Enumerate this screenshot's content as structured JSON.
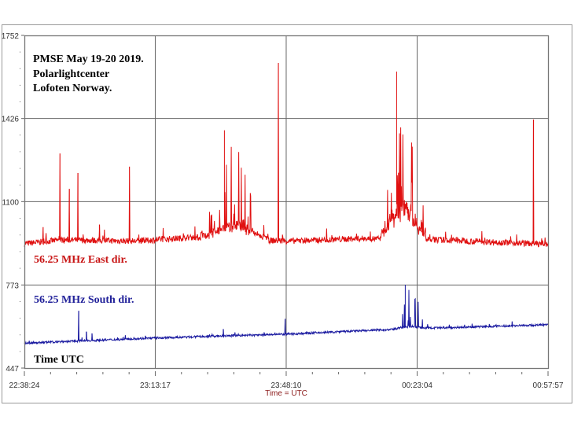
{
  "chart_data": {
    "type": "line",
    "title": "PMSE May 19-20 2019.",
    "subtitle_lines": [
      "Polarlightcenter",
      "Lofoten Norway."
    ],
    "xlabel": "Time = UTC",
    "corner_label": "Time UTC",
    "x_unit": "minutes since 22:38:24",
    "xlim": [
      0,
      139.55
    ],
    "ylim": [
      447,
      1752
    ],
    "x_ticks": [
      {
        "t": 0,
        "label": "22:38:24"
      },
      {
        "t": 34.88,
        "label": "23:13:17"
      },
      {
        "t": 69.77,
        "label": "23:48:10"
      },
      {
        "t": 104.67,
        "label": "00:23:04"
      },
      {
        "t": 139.55,
        "label": "00:57:57"
      }
    ],
    "y_ticks": [
      447,
      773,
      1100,
      1426,
      1752
    ],
    "grid": true,
    "series": [
      {
        "name": "56.25 MHz East dir.",
        "color": "#e01010",
        "baseline": [
          [
            0,
            935
          ],
          [
            10,
            950
          ],
          [
            30,
            945
          ],
          [
            45,
            960
          ],
          [
            70,
            945
          ],
          [
            90,
            955
          ],
          [
            110,
            950
          ],
          [
            139.55,
            933
          ]
        ],
        "noise": 12,
        "bursts": [
          {
            "from": 47,
            "to": 65,
            "level": 1010,
            "peak": 1380
          },
          {
            "from": 95,
            "to": 107,
            "level": 1090,
            "peak": 1610
          }
        ],
        "spikes": [
          [
            9.5,
            1289
          ],
          [
            12,
            1150
          ],
          [
            14.3,
            1212
          ],
          [
            28,
            1237
          ],
          [
            67.7,
            1644
          ],
          [
            135.7,
            1422
          ],
          [
            5,
            1000
          ],
          [
            20,
            1010
          ]
        ]
      },
      {
        "name": "56.25 MHz South dir.",
        "color": "#1a1aa0",
        "baseline": [
          [
            0,
            545
          ],
          [
            35,
            565
          ],
          [
            69.77,
            580
          ],
          [
            100,
            600
          ],
          [
            139.55,
            617
          ]
        ],
        "noise": 4,
        "bursts": [
          {
            "from": 98,
            "to": 108,
            "level": 610,
            "peak": 774
          }
        ],
        "spikes": [
          [
            14.5,
            672
          ],
          [
            16.5,
            590
          ],
          [
            18,
            583
          ],
          [
            69.5,
            640
          ],
          [
            53,
            600
          ],
          [
            130,
            630
          ]
        ]
      }
    ]
  }
}
